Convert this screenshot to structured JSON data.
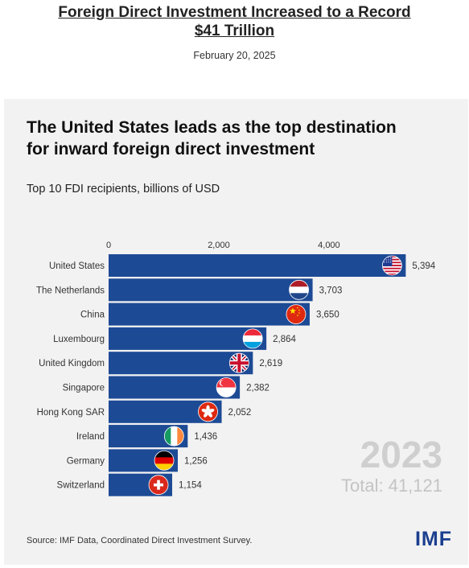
{
  "article": {
    "title_line1": "Foreign Direct Investment Increased to a Record",
    "title_line2": "$41 Trillion",
    "date": "February 20, 2025"
  },
  "card": {
    "title_line1": "The United States leads as the top destination",
    "title_line2": "for inward foreign direct investment",
    "subtitle": "Top 10 FDI recipients, billions of USD",
    "source": "Source: IMF Data, Coordinated Direct Investment Survey.",
    "logo": "IMF"
  },
  "chart_data": {
    "type": "bar",
    "orientation": "horizontal",
    "title": "The United States leads as the top destination for inward foreign direct investment",
    "subtitle": "Top 10 FDI recipients, billions of USD",
    "categories": [
      "United States",
      "The Netherlands",
      "China",
      "Luxembourg",
      "United Kingdom",
      "Singapore",
      "Hong Kong SAR",
      "Ireland",
      "Germany",
      "Switzerland"
    ],
    "values": [
      5394,
      3703,
      3650,
      2864,
      2619,
      2382,
      2052,
      1436,
      1256,
      1154
    ],
    "value_labels": [
      "5,394",
      "3,703",
      "3,650",
      "2,864",
      "2,619",
      "2,382",
      "2,052",
      "1,436",
      "1,256",
      "1,154"
    ],
    "flags": [
      "us-flag-icon",
      "netherlands-flag-icon",
      "china-flag-icon",
      "luxembourg-flag-icon",
      "uk-flag-icon",
      "singapore-flag-icon",
      "hong-kong-flag-icon",
      "ireland-flag-icon",
      "germany-flag-icon",
      "switzerland-flag-icon"
    ],
    "xlim": [
      0,
      6000
    ],
    "xticks": [
      0,
      2000,
      4000
    ],
    "xtick_labels": [
      "0",
      "2,000",
      "4,000"
    ],
    "xaxis_position": "top",
    "grid": false,
    "bar_color": "#1d4a95",
    "annotation_year": "2023",
    "annotation_total": "Total: 41,121"
  }
}
